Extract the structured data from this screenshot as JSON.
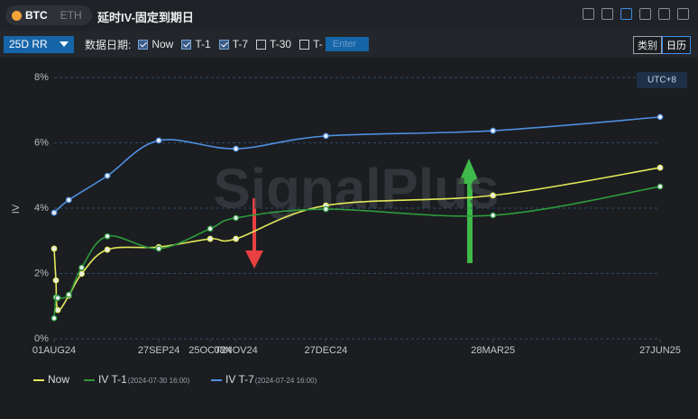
{
  "header": {
    "tabs": [
      "BTC",
      "ETH"
    ],
    "title": "延时IV-固定到期日"
  },
  "toolbar": {
    "dropdown": "25D RR",
    "date_label": "数据日期:",
    "options": [
      {
        "label": "Now",
        "checked": true
      },
      {
        "label": "T-1",
        "checked": true
      },
      {
        "label": "T-7",
        "checked": true
      },
      {
        "label": "T-30",
        "checked": false
      },
      {
        "label": "T-",
        "checked": false
      }
    ],
    "input_placeholder": "Enter",
    "view_buttons": [
      "类别",
      "日历"
    ]
  },
  "chart_data": {
    "type": "line",
    "watermark": "SignalPlus",
    "timezone": "UTC+8",
    "y_label": "IV",
    "xlim": [
      "01AUG24",
      "27JUN25"
    ],
    "xticks": [
      "01AUG24",
      "27SEP24",
      "25OCT24",
      "08NOV24",
      "27DEC24",
      "28MAR25",
      "27JUN25"
    ],
    "ylim": [
      0,
      8
    ],
    "yticks": [
      {
        "value": 0,
        "label": "0%"
      },
      {
        "value": 2,
        "label": "2%"
      },
      {
        "value": 4,
        "label": "4%"
      },
      {
        "value": 6,
        "label": "6%"
      },
      {
        "value": 8,
        "label": "8%"
      }
    ],
    "grid": true,
    "series": [
      {
        "name": "Now",
        "color": "#e3e85a",
        "x": [
          "01AUG24",
          "02AUG24",
          "03AUG24",
          "09AUG24",
          "16AUG24",
          "30AUG24",
          "27SEP24",
          "25OCT24",
          "08NOV24",
          "27DEC24",
          "28MAR25",
          "27JUN25"
        ],
        "values": [
          2.76,
          1.79,
          0.88,
          1.32,
          1.99,
          2.73,
          2.81,
          3.06,
          3.06,
          4.08,
          4.39,
          5.24
        ]
      },
      {
        "name": "IV T-1",
        "timestamp": "(2024-07-30 16:00)",
        "color": "#2e9b3c",
        "x": [
          "01AUG24",
          "02AUG24",
          "03AUG24",
          "09AUG24",
          "16AUG24",
          "30AUG24",
          "27SEP24",
          "25OCT24",
          "08NOV24",
          "27DEC24",
          "28MAR25",
          "27JUN25"
        ],
        "values": [
          0.63,
          1.27,
          1.25,
          1.35,
          2.18,
          3.14,
          2.76,
          3.37,
          3.7,
          3.97,
          3.78,
          4.66
        ]
      },
      {
        "name": "IV T-7",
        "timestamp": "(2024-07-24 16:00)",
        "color": "#4f8fe0",
        "x": [
          "01AUG24",
          "09AUG24",
          "30AUG24",
          "27SEP24",
          "08NOV24",
          "27DEC24",
          "28MAR25",
          "27JUN25"
        ],
        "values": [
          3.86,
          4.25,
          4.99,
          6.07,
          5.82,
          6.21,
          6.37,
          6.79
        ]
      }
    ]
  }
}
